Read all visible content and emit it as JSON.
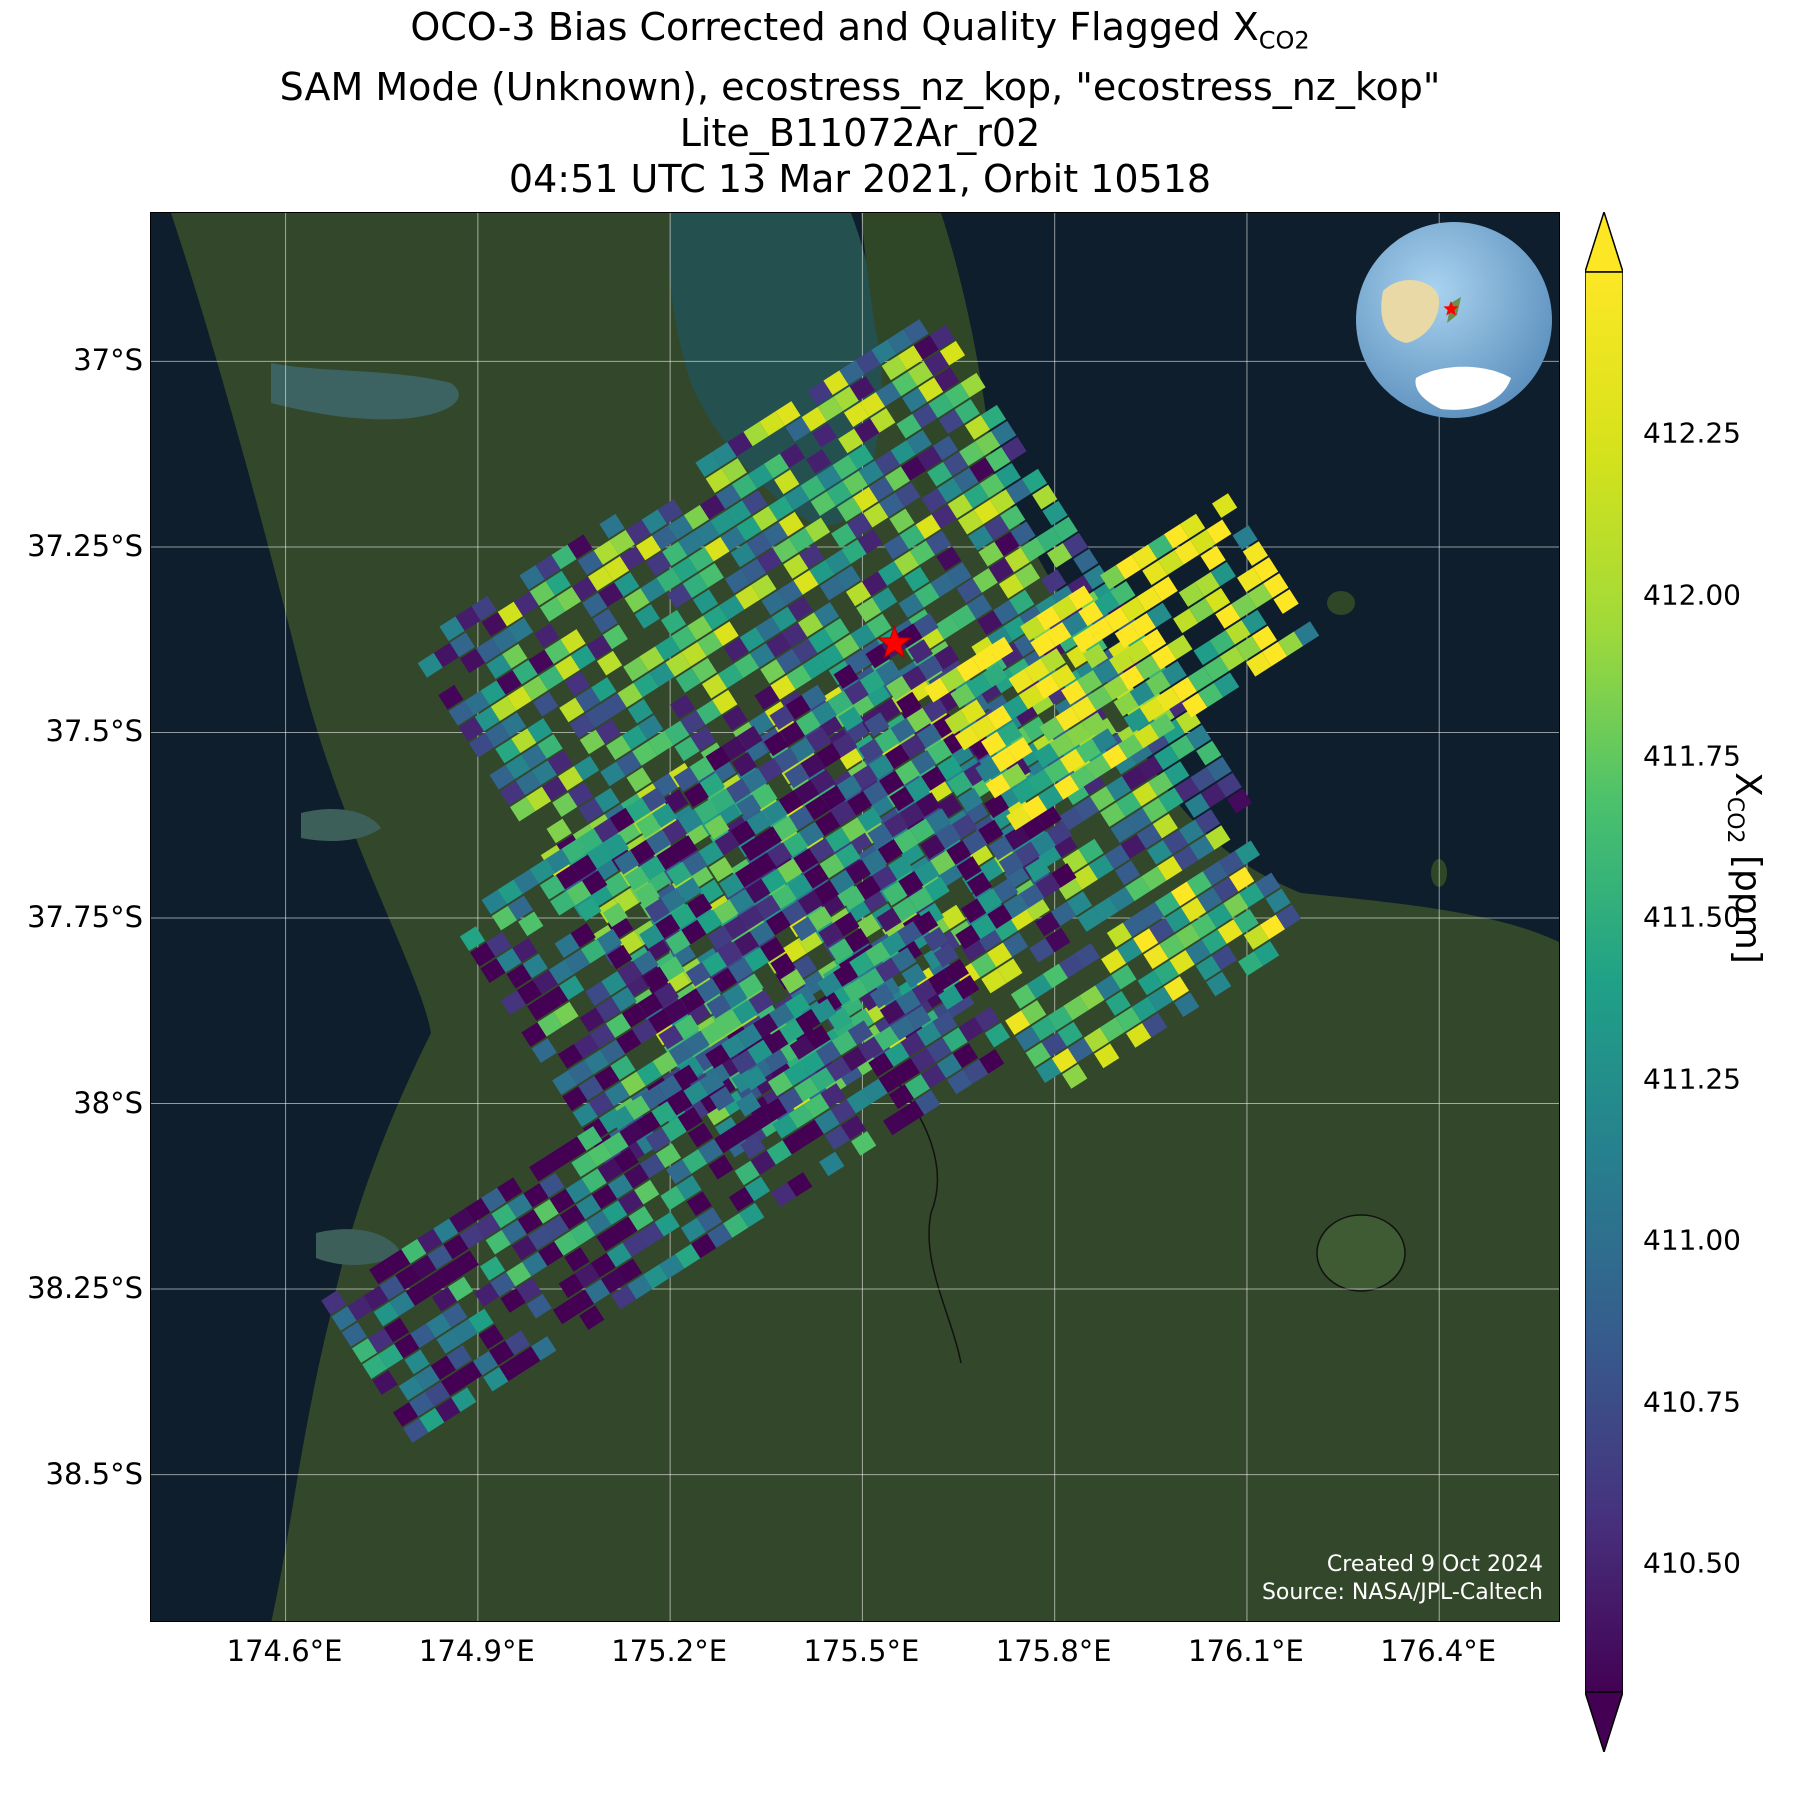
{
  "title": {
    "line1_prefix": "OCO-3 Bias Corrected and Quality Flagged X",
    "line1_sub": "CO2",
    "line2": "SAM Mode (Unknown), ecostress_nz_kop, \"ecostress_nz_kop\"",
    "line3": "Lite_B11072Ar_r02",
    "line4": "04:51 UTC 13 Mar 2021, Orbit 10518"
  },
  "map": {
    "lat_labels": [
      "37°S",
      "37.25°S",
      "37.5°S",
      "37.75°S",
      "38°S",
      "38.25°S",
      "38.5°S"
    ],
    "lon_labels": [
      "174.6°E",
      "174.9°E",
      "175.2°E",
      "175.5°E",
      "175.8°E",
      "176.1°E",
      "176.4°E"
    ],
    "lat_ticks": [
      -37.0,
      -37.25,
      -37.5,
      -37.75,
      -38.0,
      -38.25,
      -38.5
    ],
    "lon_ticks": [
      174.6,
      174.9,
      175.2,
      175.5,
      175.8,
      176.1,
      176.4
    ],
    "extent": {
      "lon_min": 174.39,
      "lon_max": 176.59,
      "lat_max": -36.8,
      "lat_min": -38.7
    },
    "target_marker": {
      "lon": 175.55,
      "lat": -37.38,
      "symbol": "red-star"
    },
    "basemap": "satellite imagery",
    "grid": true,
    "credit_line1": "Created 9 Oct 2024",
    "credit_line2": "Source: NASA/JPL-Caltech"
  },
  "inset_globe": {
    "highlight": "red-star",
    "location": "top-right"
  },
  "colorbar": {
    "label_prefix": "X",
    "label_sub": "CO2",
    "label_suffix": " [ppm]",
    "colormap": "viridis",
    "range": [
      410.3,
      412.5
    ],
    "extend": "both",
    "ticks": [
      412.25,
      412.0,
      411.75,
      411.5,
      411.25,
      411.0,
      410.75,
      410.5
    ],
    "tick_labels": [
      "412.25",
      "412.00",
      "411.75",
      "411.50",
      "411.25",
      "411.00",
      "410.75",
      "410.50"
    ]
  }
}
